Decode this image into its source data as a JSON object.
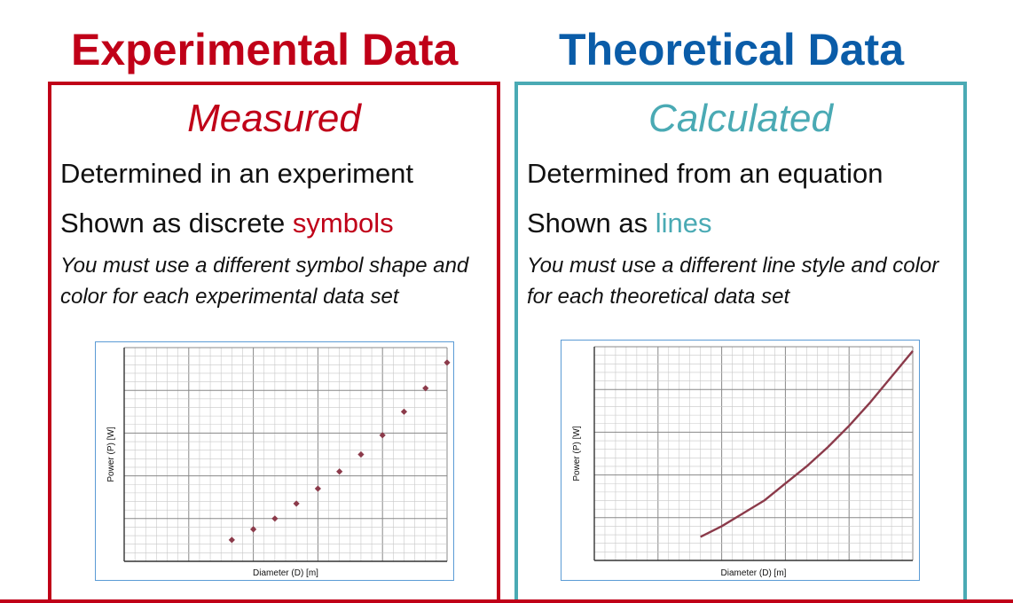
{
  "left": {
    "heading": "Experimental Data",
    "subtitle": "Measured",
    "line1": "Determined in an experiment",
    "line2_prefix": "Shown as discrete ",
    "line2_accent": "symbols",
    "note": "You must use a different symbol shape and color for each experimental data set",
    "color": "#C00018"
  },
  "right": {
    "heading": "Theoretical Data",
    "subtitle": "Calculated",
    "line1": "Determined from an equation",
    "line2_prefix": "Shown as ",
    "line2_accent": "lines",
    "note": "You must use a different line style and color for each theoretical data set",
    "heading_color": "#0A5CA8",
    "color": "#4AAAB4"
  },
  "chart_data": [
    {
      "type": "scatter",
      "xlabel": "Diameter (D) [m]",
      "ylabel": "Power (P) [W]",
      "xlim": [
        0,
        15
      ],
      "ylim": [
        0,
        10
      ],
      "grid": true,
      "marker_color": "#8B3A4A",
      "x": [
        5,
        6,
        7,
        8,
        9,
        10,
        11,
        12,
        13,
        14,
        15
      ],
      "y": [
        1.0,
        1.5,
        2.0,
        2.7,
        3.4,
        4.2,
        5.0,
        5.9,
        7.0,
        8.1,
        9.3
      ]
    },
    {
      "type": "line",
      "xlabel": "Diameter (D) [m]",
      "ylabel": "Power (P) [W]",
      "xlim": [
        0,
        15
      ],
      "ylim": [
        0,
        10
      ],
      "grid": true,
      "line_color": "#8B3A4A",
      "x": [
        5,
        6,
        7,
        8,
        9,
        10,
        11,
        12,
        13,
        14,
        15
      ],
      "y": [
        1.1,
        1.6,
        2.2,
        2.8,
        3.6,
        4.4,
        5.3,
        6.3,
        7.4,
        8.6,
        9.8
      ]
    }
  ]
}
